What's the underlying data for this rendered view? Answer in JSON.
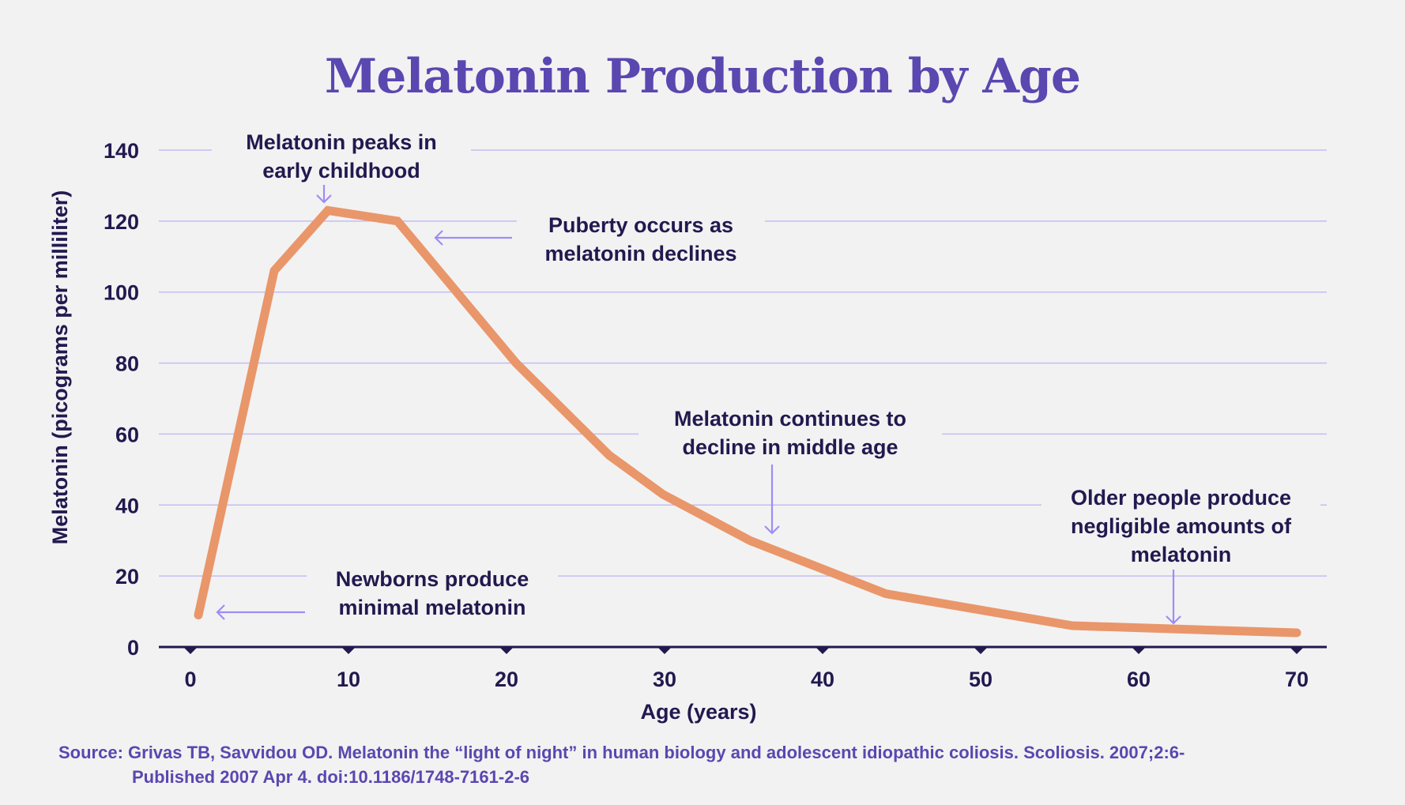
{
  "colors": {
    "background": "#f2f2f2",
    "title": "#5a47b0",
    "text": "#22194f",
    "line": "#e9966a",
    "gridline": "#c4bdf2",
    "arrow": "#a08cf5",
    "axis": "#22194f",
    "source": "#5a47b0"
  },
  "chart_data": {
    "type": "line",
    "title": "Melatonin Production by Age",
    "xlabel": "Age (years)",
    "ylabel": "Melatonin (picograms per milliliter)",
    "xlim": [
      0,
      70
    ],
    "ylim": [
      0,
      140
    ],
    "xticks": [
      0,
      10,
      20,
      30,
      40,
      50,
      60,
      70
    ],
    "yticks": [
      0,
      20,
      40,
      60,
      80,
      100,
      120,
      140
    ],
    "grid": "horizontal",
    "legend": "none",
    "series": [
      {
        "name": "Melatonin",
        "x": [
          0.5,
          5.3,
          8.7,
          13.1,
          20.6,
          26.5,
          29.9,
          35.4,
          44,
          55.8,
          70
        ],
        "y": [
          9,
          106,
          123,
          120,
          80,
          54,
          43,
          30,
          15,
          6,
          4
        ]
      }
    ],
    "annotations": [
      {
        "text": "Melatonin peaks in\nearly childhood",
        "points_to": {
          "x": 8.7,
          "y": 123
        },
        "arrow": "down"
      },
      {
        "text": "Puberty occurs as\nmelatonin declines",
        "points_to": {
          "x": 14.5,
          "y": 116
        },
        "arrow": "left"
      },
      {
        "text": "Melatonin continues to\ndecline in middle age",
        "points_to": {
          "x": 36.3,
          "y": 32
        },
        "arrow": "down"
      },
      {
        "text": "Older people produce\nnegligible amounts of\nmelatonin",
        "points_to": {
          "x": 62.5,
          "y": 7
        },
        "arrow": "down"
      },
      {
        "text": "Newborns produce\nminimal melatonin",
        "points_to": {
          "x": 1.5,
          "y": 10
        },
        "arrow": "left"
      }
    ]
  },
  "source": {
    "line1": "Source: Grivas TB, Savvidou OD. Melatonin the “light of night” in human biology and adolescent idiopathic coliosis. Scoliosis. 2007;2:6-",
    "line2": "Published 2007 Apr 4. doi:10.1186/1748-7161-2-6"
  }
}
